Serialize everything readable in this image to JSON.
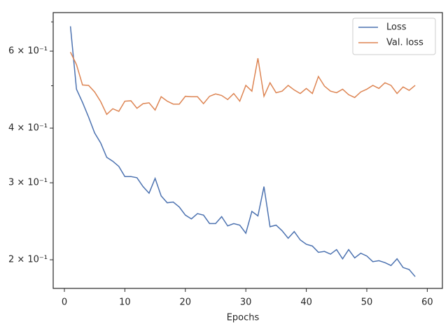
{
  "chart_data": {
    "type": "line",
    "x_label": "Epochs",
    "x": [
      1,
      2,
      3,
      4,
      5,
      6,
      7,
      8,
      9,
      10,
      11,
      12,
      13,
      14,
      15,
      16,
      17,
      18,
      19,
      20,
      21,
      22,
      23,
      24,
      25,
      26,
      27,
      28,
      29,
      30,
      31,
      32,
      33,
      34,
      35,
      36,
      37,
      38,
      39,
      40,
      41,
      42,
      43,
      44,
      45,
      46,
      47,
      48,
      49,
      50,
      51,
      52,
      53,
      54,
      55,
      56,
      57,
      58
    ],
    "series": [
      {
        "name": "Loss",
        "color": "#4c72b0",
        "values": [
          0.684,
          0.491,
          0.458,
          0.424,
          0.39,
          0.37,
          0.343,
          0.336,
          0.327,
          0.31,
          0.31,
          0.308,
          0.294,
          0.284,
          0.307,
          0.28,
          0.27,
          0.271,
          0.264,
          0.253,
          0.248,
          0.255,
          0.253,
          0.242,
          0.242,
          0.251,
          0.239,
          0.242,
          0.24,
          0.23,
          0.258,
          0.252,
          0.294,
          0.238,
          0.24,
          0.233,
          0.224,
          0.232,
          0.222,
          0.217,
          0.215,
          0.208,
          0.209,
          0.206,
          0.211,
          0.201,
          0.211,
          0.202,
          0.207,
          0.204,
          0.198,
          0.199,
          0.197,
          0.194,
          0.201,
          0.192,
          0.19,
          0.183
        ]
      },
      {
        "name": "Val. loss",
        "color": "#dd8452",
        "values": [
          0.597,
          0.559,
          0.502,
          0.501,
          0.484,
          0.46,
          0.43,
          0.443,
          0.437,
          0.461,
          0.462,
          0.444,
          0.455,
          0.457,
          0.44,
          0.472,
          0.461,
          0.454,
          0.454,
          0.473,
          0.472,
          0.472,
          0.455,
          0.473,
          0.479,
          0.475,
          0.465,
          0.48,
          0.461,
          0.501,
          0.486,
          0.578,
          0.473,
          0.508,
          0.482,
          0.486,
          0.501,
          0.489,
          0.48,
          0.493,
          0.48,
          0.525,
          0.499,
          0.486,
          0.482,
          0.491,
          0.477,
          0.47,
          0.484,
          0.491,
          0.501,
          0.493,
          0.508,
          0.501,
          0.48,
          0.497,
          0.488,
          0.501
        ]
      }
    ],
    "xlim": [
      -1.85,
      62.5
    ],
    "xticks": [
      0,
      10,
      20,
      30,
      40,
      50,
      60
    ],
    "ylim": [
      0.172,
      0.735
    ],
    "y_scale": "log",
    "yticks": [
      {
        "value": 0.2,
        "label": "2 × 10⁻¹"
      },
      {
        "value": 0.3,
        "label": "3 × 10⁻¹"
      },
      {
        "value": 0.4,
        "label": "4 × 10⁻¹"
      },
      {
        "value": 0.6,
        "label": "6 × 10⁻¹"
      }
    ],
    "yminor": [
      0.5,
      0.7
    ],
    "legend": "upper right"
  }
}
